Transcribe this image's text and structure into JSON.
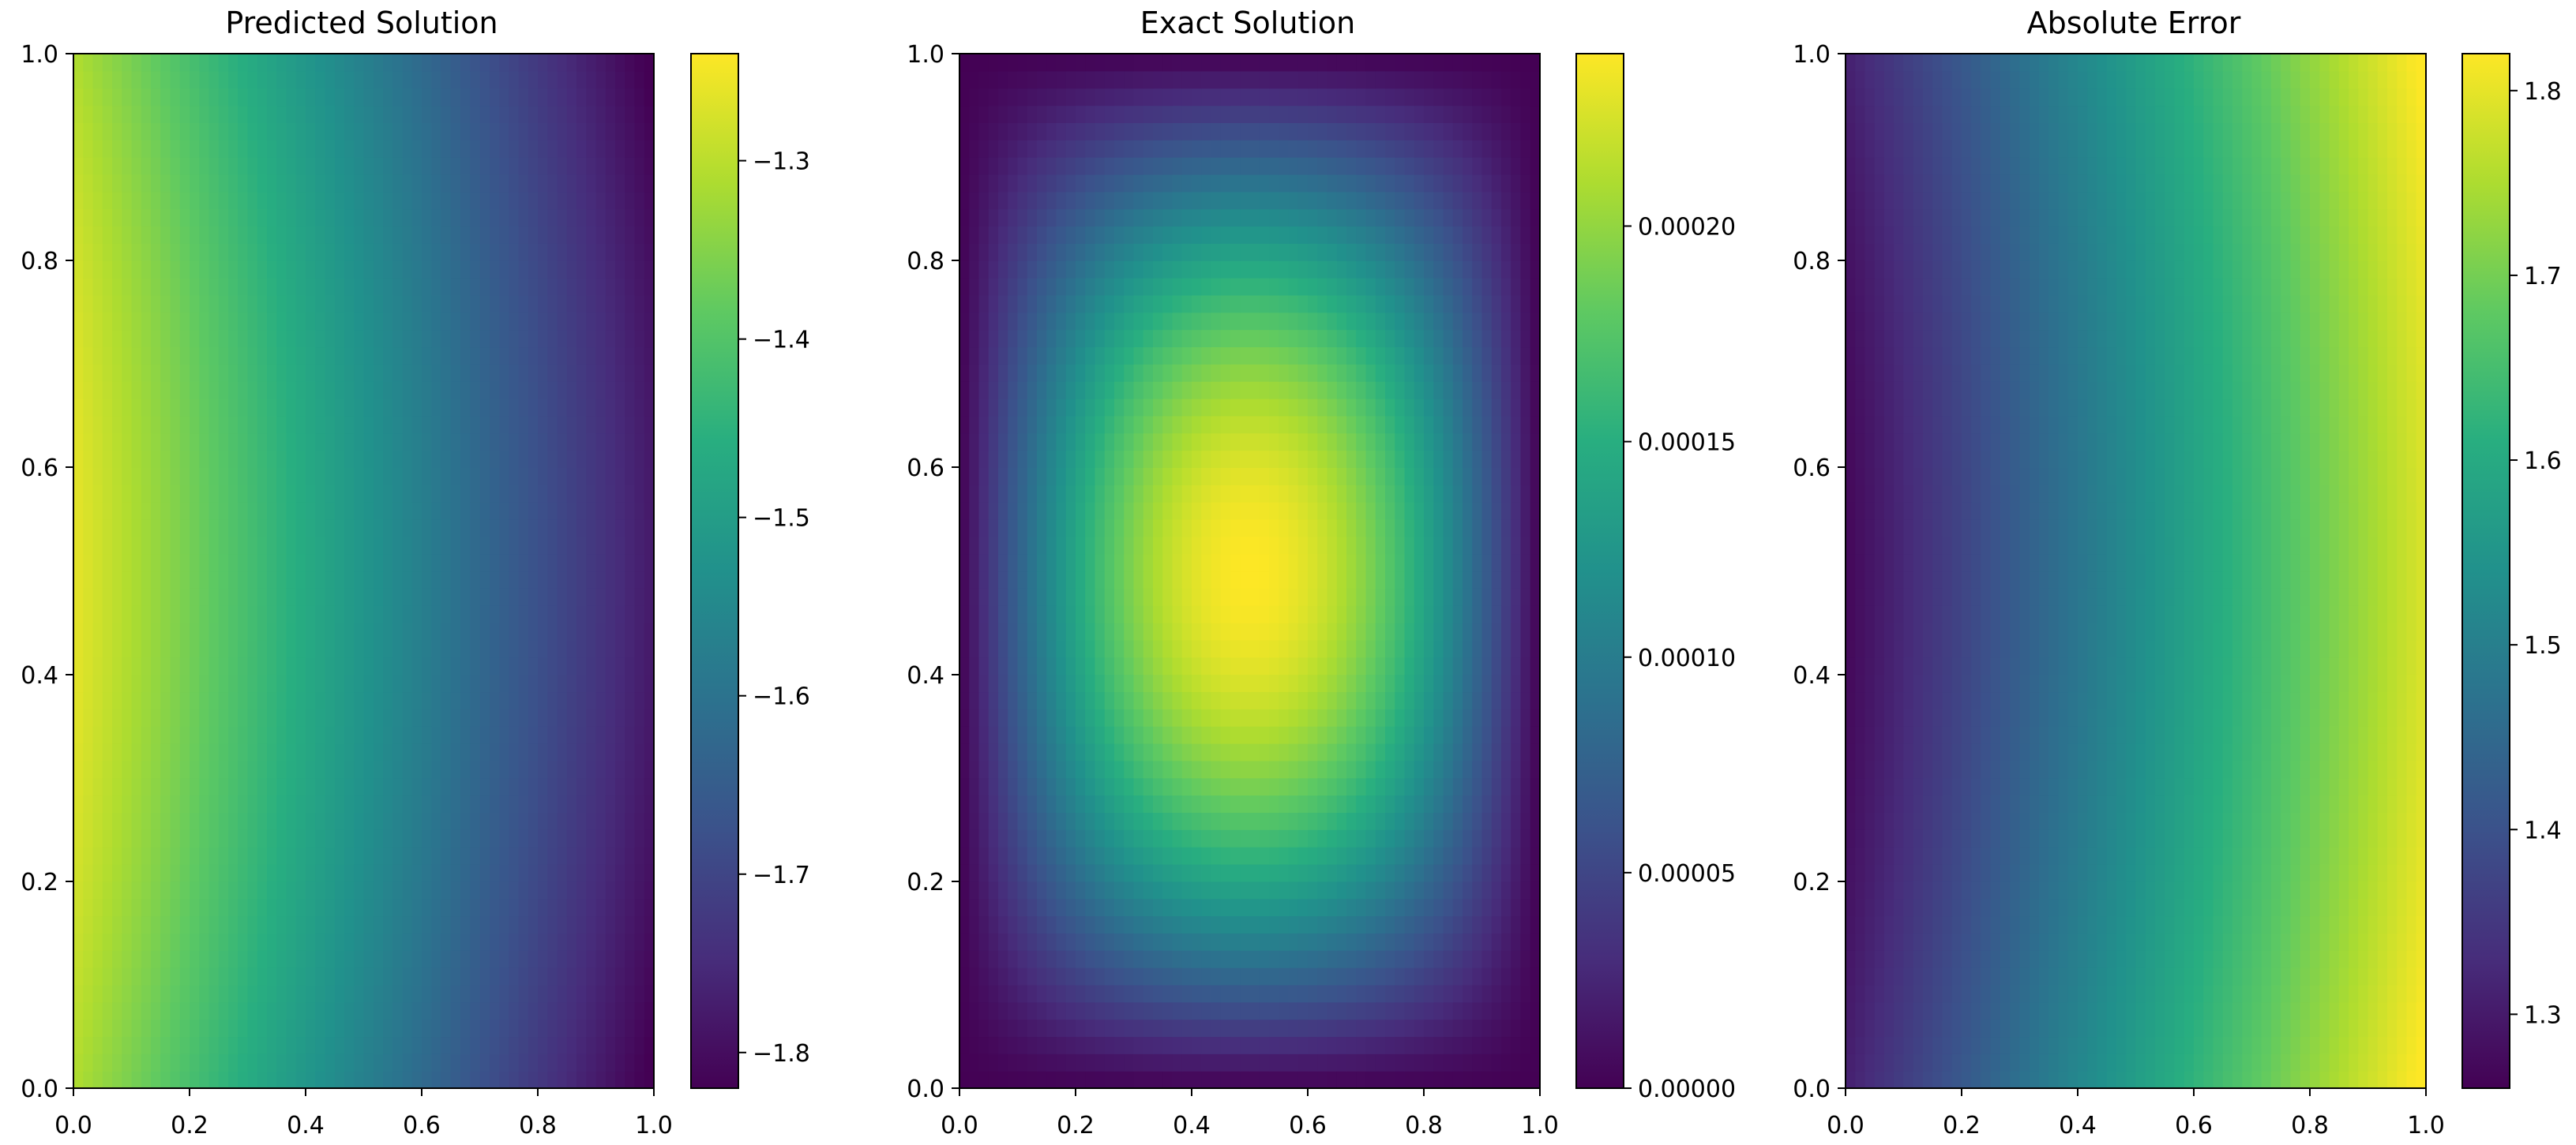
{
  "chart_data": [
    {
      "type": "heatmap",
      "title": "Predicted Solution",
      "x_ticks": [
        "0.0",
        "0.2",
        "0.4",
        "0.6",
        "0.8",
        "1.0"
      ],
      "y_ticks": [
        "0.0",
        "0.2",
        "0.4",
        "0.6",
        "0.8",
        "1.0"
      ],
      "xlim": [
        0,
        1
      ],
      "ylim": [
        0,
        1
      ],
      "colormap": "viridis",
      "value_range": [
        -1.82,
        -1.24
      ],
      "colorbar_ticks": [
        {
          "value": -1.3,
          "label": "−1.3"
        },
        {
          "value": -1.4,
          "label": "−1.4"
        },
        {
          "value": -1.5,
          "label": "−1.5"
        },
        {
          "value": -1.6,
          "label": "−1.6"
        },
        {
          "value": -1.7,
          "label": "−1.7"
        },
        {
          "value": -1.8,
          "label": "−1.8"
        }
      ]
    },
    {
      "type": "heatmap",
      "title": "Exact Solution",
      "x_ticks": [
        "0.0",
        "0.2",
        "0.4",
        "0.6",
        "0.8",
        "1.0"
      ],
      "y_ticks": [
        "0.0",
        "0.2",
        "0.4",
        "0.6",
        "0.8",
        "1.0"
      ],
      "xlim": [
        0,
        1
      ],
      "ylim": [
        0,
        1
      ],
      "colormap": "viridis",
      "value_range": [
        0.0,
        0.00024
      ],
      "colorbar_ticks": [
        {
          "value": 0.0,
          "label": "0.00000"
        },
        {
          "value": 5e-05,
          "label": "0.00005"
        },
        {
          "value": 0.0001,
          "label": "0.00010"
        },
        {
          "value": 0.00015,
          "label": "0.00015"
        },
        {
          "value": 0.0002,
          "label": "0.00020"
        }
      ]
    },
    {
      "type": "heatmap",
      "title": "Absolute Error",
      "x_ticks": [
        "0.0",
        "0.2",
        "0.4",
        "0.6",
        "0.8",
        "1.0"
      ],
      "y_ticks": [
        "0.0",
        "0.2",
        "0.4",
        "0.6",
        "0.8",
        "1.0"
      ],
      "xlim": [
        0,
        1
      ],
      "ylim": [
        0,
        1
      ],
      "colormap": "viridis",
      "value_range": [
        1.26,
        1.82
      ],
      "colorbar_ticks": [
        {
          "value": 1.3,
          "label": "1.3"
        },
        {
          "value": 1.4,
          "label": "1.4"
        },
        {
          "value": 1.5,
          "label": "1.5"
        },
        {
          "value": 1.6,
          "label": "1.6"
        },
        {
          "value": 1.7,
          "label": "1.7"
        },
        {
          "value": 1.8,
          "label": "1.8"
        }
      ]
    }
  ]
}
